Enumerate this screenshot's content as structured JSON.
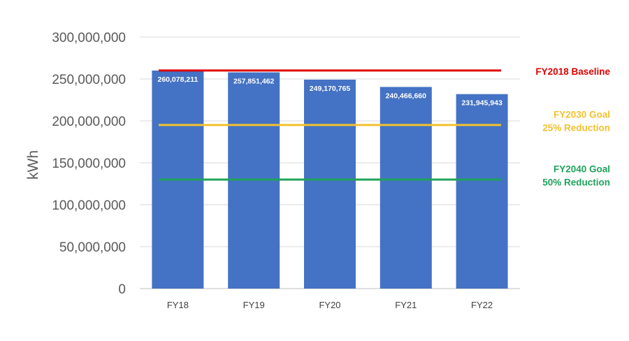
{
  "chart_data": {
    "type": "bar",
    "categories": [
      "FY18",
      "FY19",
      "FY20",
      "FY21",
      "FY22"
    ],
    "values": [
      260078211,
      257851462,
      249170765,
      240466660,
      231945943
    ],
    "data_labels": [
      "260,078,211",
      "257,851,462",
      "249,170,765",
      "240,466,660",
      "231,945,943"
    ],
    "ylabel": "kWh",
    "ylim": [
      0,
      300000000
    ],
    "yticks": [
      0,
      50000000,
      100000000,
      150000000,
      200000000,
      250000000,
      300000000
    ],
    "ytick_labels": [
      "0",
      "50,000,000",
      "100,000,000",
      "150,000,000",
      "200,000,000",
      "250,000,000",
      "300,000,000"
    ],
    "grid": true,
    "bar_color": "#4472c4",
    "reference_lines": [
      {
        "value": 260078211,
        "label_lines": [
          "FY2018 Baseline"
        ],
        "color": "#e00000"
      },
      {
        "value": 195058658,
        "label_lines": [
          "FY2030 Goal",
          "25% Reduction"
        ],
        "color": "#f2c12e"
      },
      {
        "value": 130039106,
        "label_lines": [
          "FY2040 Goal",
          "50% Reduction"
        ],
        "color": "#1ea35a"
      }
    ]
  }
}
